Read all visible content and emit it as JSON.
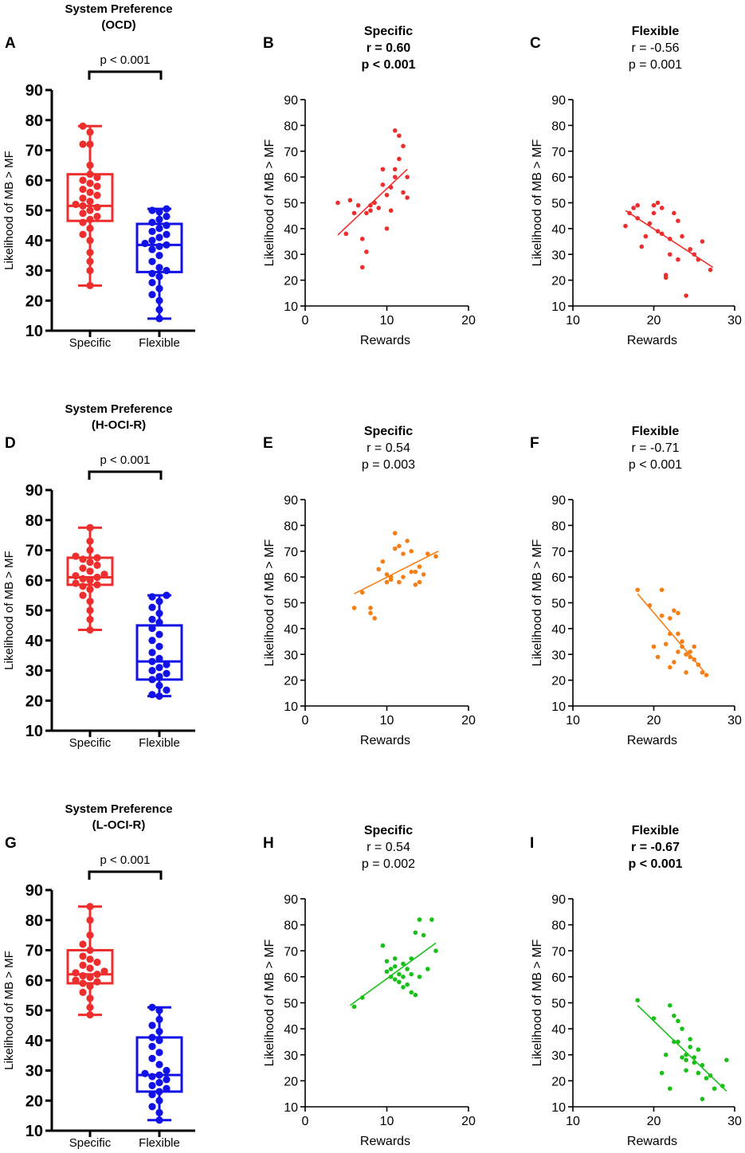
{
  "colors": {
    "red": "#ee2d2d",
    "blue": "#1212e8",
    "orange": "#f57f17",
    "green": "#18c018",
    "axis": "#000000"
  },
  "chart_data": [
    {
      "id": "A",
      "type": "box",
      "panel_letter": "A",
      "title": [
        "System Preference",
        "(OCD)"
      ],
      "title_bold": true,
      "ylabel": "Likelihood of MB > MF",
      "ylim": [
        10,
        90
      ],
      "yticks": [
        10,
        20,
        30,
        40,
        50,
        60,
        70,
        80,
        90
      ],
      "categories": [
        "Specific",
        "Flexible"
      ],
      "significance": "p < 0.001",
      "boxes": [
        {
          "name": "Specific",
          "color": "red",
          "min": 25,
          "q1": 46.5,
          "median": 51.5,
          "q3": 62,
          "max": 78,
          "points": [
            78,
            76,
            72,
            72,
            65,
            62,
            61,
            60,
            59,
            58,
            57,
            56,
            55,
            54,
            53,
            52,
            51.5,
            51,
            50,
            49,
            48,
            47,
            46,
            44,
            42,
            40,
            36,
            33,
            30,
            25
          ]
        },
        {
          "name": "Flexible",
          "color": "blue",
          "min": 14,
          "q1": 29.5,
          "median": 38.5,
          "q3": 45.5,
          "max": 50.5,
          "points": [
            50.5,
            50,
            49.5,
            48,
            47,
            46,
            45,
            44,
            43,
            42,
            41,
            40,
            39,
            38.5,
            38,
            37,
            35,
            33,
            31,
            30,
            29,
            28,
            26,
            24,
            22,
            20,
            17,
            14
          ]
        }
      ]
    },
    {
      "id": "B",
      "type": "scatter",
      "panel_letter": "B",
      "title": [
        "Specific",
        "r = 0.60",
        "p < 0.001"
      ],
      "title_bold": true,
      "color": "orange_red",
      "xlabel": "Rewards",
      "ylabel": "Likelihood of MB > MF",
      "xlim": [
        0,
        20
      ],
      "xticks": [
        0,
        10,
        20
      ],
      "ylim": [
        10,
        90
      ],
      "yticks": [
        10,
        20,
        30,
        40,
        50,
        60,
        70,
        80,
        90
      ],
      "x": [
        4,
        5,
        5.5,
        6,
        6.5,
        7,
        7,
        7.5,
        7.5,
        8,
        8,
        8.5,
        9,
        9.5,
        9.5,
        10,
        10,
        10.5,
        10.5,
        11,
        11,
        11,
        11.5,
        11.5,
        12,
        12,
        12.5,
        12.5
      ],
      "y": [
        50,
        38,
        51,
        46,
        49,
        36,
        25,
        46,
        31,
        47,
        49,
        50,
        48,
        57,
        63,
        53,
        40,
        56,
        47,
        60,
        63,
        78,
        76,
        67,
        72,
        54,
        60,
        52
      ],
      "fit": {
        "x1": 4,
        "y1": 37.5,
        "x2": 12.5,
        "y2": 63
      }
    },
    {
      "id": "C",
      "type": "scatter",
      "panel_letter": "C",
      "title": [
        "Flexible",
        "r = -0.56",
        "p = 0.001"
      ],
      "title_bold": false,
      "color": "orange_red",
      "xlabel": "Rewards",
      "ylabel": "Likelihood of MB > MF",
      "xlim": [
        10,
        30
      ],
      "xticks": [
        10,
        20,
        30
      ],
      "ylim": [
        10,
        90
      ],
      "yticks": [
        10,
        20,
        30,
        40,
        50,
        60,
        70,
        80,
        90
      ],
      "x": [
        16.5,
        17,
        17.5,
        18,
        18,
        18.5,
        19,
        19.5,
        20,
        20,
        20.5,
        20.5,
        21,
        21,
        21.5,
        21.5,
        22,
        22,
        22.5,
        23,
        23,
        23.5,
        24,
        24.5,
        25,
        25.5,
        26,
        27
      ],
      "y": [
        41,
        46,
        48,
        44,
        49,
        33,
        37,
        42,
        46,
        49,
        39,
        50,
        48,
        38,
        21,
        22,
        36,
        30,
        46,
        43,
        28,
        37,
        14,
        32,
        30,
        28,
        35,
        24
      ],
      "fit": {
        "x1": 16.5,
        "y1": 47,
        "x2": 27.3,
        "y2": 25
      }
    },
    {
      "id": "D",
      "type": "box",
      "panel_letter": "D",
      "title": [
        "System Preference",
        "(H-OCI-R)"
      ],
      "title_bold": true,
      "ylabel": "Likelihood of MB > MF",
      "ylim": [
        10,
        90
      ],
      "yticks": [
        10,
        20,
        30,
        40,
        50,
        60,
        70,
        80,
        90
      ],
      "categories": [
        "Specific",
        "Flexible"
      ],
      "significance": "p < 0.001",
      "boxes": [
        {
          "name": "Specific",
          "color": "red",
          "min": 43.5,
          "q1": 58.5,
          "median": 61,
          "q3": 67.5,
          "max": 77.5,
          "points": [
            77.5,
            73,
            70,
            68,
            67.5,
            67,
            66,
            65,
            64,
            63,
            62,
            61.5,
            61,
            60.5,
            60,
            59,
            58.5,
            58,
            57,
            55,
            53,
            50,
            47,
            43.5
          ]
        },
        {
          "name": "Flexible",
          "color": "blue",
          "min": 21.5,
          "q1": 27,
          "median": 33,
          "q3": 45,
          "max": 55,
          "points": [
            55,
            54.5,
            53,
            51,
            49,
            47,
            46,
            44,
            42,
            40,
            38,
            36,
            34,
            33,
            32,
            31,
            30,
            29,
            28,
            27,
            25,
            23.5,
            22,
            21.5
          ]
        }
      ]
    },
    {
      "id": "E",
      "type": "scatter",
      "panel_letter": "E",
      "title": [
        "Specific",
        "r = 0.54",
        "p = 0.003"
      ],
      "title_bold": false,
      "color": "orange",
      "xlabel": "Rewards",
      "ylabel": "Likelihood of MB > MF",
      "xlim": [
        0,
        20
      ],
      "xticks": [
        0,
        10,
        20
      ],
      "ylim": [
        10,
        90
      ],
      "yticks": [
        10,
        20,
        30,
        40,
        50,
        60,
        70,
        80,
        90
      ],
      "x": [
        6,
        7,
        8,
        8,
        8.5,
        9,
        9.5,
        10,
        10,
        10.5,
        10.5,
        11,
        11,
        11.5,
        11.5,
        12,
        12,
        12.5,
        13,
        13,
        13.5,
        13.5,
        14,
        14,
        14.5,
        15,
        16
      ],
      "y": [
        48,
        54,
        46,
        48,
        44,
        63,
        66,
        61,
        58,
        60,
        59,
        71,
        77,
        72,
        58,
        69,
        60,
        74,
        70,
        62,
        57,
        62,
        58,
        64,
        61,
        69,
        68
      ],
      "fit": {
        "x1": 6,
        "y1": 53.5,
        "x2": 16.3,
        "y2": 70
      }
    },
    {
      "id": "F",
      "type": "scatter",
      "panel_letter": "F",
      "title": [
        "Flexible",
        "r = -0.71",
        "p < 0.001"
      ],
      "title_bold": false,
      "color": "orange",
      "xlabel": "Rewards",
      "ylabel": "Likelihood of MB > MF",
      "xlim": [
        10,
        30
      ],
      "xticks": [
        10,
        20,
        30
      ],
      "ylim": [
        10,
        90
      ],
      "yticks": [
        10,
        20,
        30,
        40,
        50,
        60,
        70,
        80,
        90
      ],
      "x": [
        18,
        19.5,
        20,
        20.5,
        21,
        21,
        21.5,
        22,
        22,
        22,
        22.5,
        22.5,
        23,
        23,
        23,
        23.5,
        23.5,
        24,
        24,
        24.5,
        24.5,
        25,
        25,
        25.5,
        26,
        26.5
      ],
      "y": [
        55,
        49,
        33,
        29,
        55,
        45,
        34,
        25,
        38,
        44,
        27,
        47,
        31,
        38,
        46,
        33,
        35,
        23,
        30,
        29,
        31,
        33,
        28,
        26,
        23,
        22
      ],
      "fit": {
        "x1": 18,
        "y1": 53.5,
        "x2": 26.3,
        "y2": 23
      }
    },
    {
      "id": "G",
      "type": "box",
      "panel_letter": "G",
      "title": [
        "System Preference",
        "(L-OCI-R)"
      ],
      "title_bold": true,
      "ylabel": "Likelihood of MB > MF",
      "ylim": [
        10,
        90
      ],
      "yticks": [
        10,
        20,
        30,
        40,
        50,
        60,
        70,
        80,
        90
      ],
      "categories": [
        "Specific",
        "Flexible"
      ],
      "significance": "p < 0.001",
      "boxes": [
        {
          "name": "Specific",
          "color": "red",
          "min": 48.5,
          "q1": 59,
          "median": 62,
          "q3": 70,
          "max": 84.5,
          "points": [
            84.5,
            80,
            75,
            72,
            70,
            68,
            67,
            66,
            65,
            64,
            63,
            62.5,
            62,
            61.5,
            61,
            60,
            59.5,
            59,
            58,
            56,
            54,
            51,
            48.5
          ]
        },
        {
          "name": "Flexible",
          "color": "blue",
          "min": 13.5,
          "q1": 23,
          "median": 28.5,
          "q3": 41,
          "max": 51,
          "points": [
            51,
            50,
            47,
            45,
            43,
            41,
            40,
            38,
            36,
            34,
            32,
            30,
            29,
            28.5,
            28,
            27,
            26,
            25,
            24,
            23,
            22,
            20,
            18,
            16,
            13.5
          ]
        }
      ]
    },
    {
      "id": "H",
      "type": "scatter",
      "panel_letter": "H",
      "title": [
        "Specific",
        "r = 0.54",
        "p = 0.002"
      ],
      "title_bold": false,
      "color": "green",
      "xlabel": "Rewards",
      "ylabel": "Likelihood of MB > MF",
      "xlim": [
        0,
        20
      ],
      "xticks": [
        0,
        10,
        20
      ],
      "ylim": [
        10,
        90
      ],
      "yticks": [
        10,
        20,
        30,
        40,
        50,
        60,
        70,
        80,
        90
      ],
      "x": [
        6,
        7,
        9.5,
        10,
        10,
        10.5,
        10.5,
        11,
        11,
        11,
        11.5,
        11.5,
        12,
        12,
        12,
        12.5,
        12.5,
        13,
        13,
        13,
        13.5,
        13.5,
        14,
        14,
        14.5,
        15,
        15.5,
        16
      ],
      "y": [
        48.5,
        52,
        72,
        62,
        66,
        60,
        63,
        64,
        67,
        59,
        58,
        61,
        65,
        60,
        56,
        57,
        63,
        54,
        67,
        61,
        77,
        53,
        82,
        60,
        76,
        63,
        82,
        70
      ],
      "fit": {
        "x1": 5.5,
        "y1": 49,
        "x2": 16,
        "y2": 73
      }
    },
    {
      "id": "I",
      "type": "scatter",
      "panel_letter": "I",
      "title": [
        "Flexible",
        "r = -0.67",
        "p < 0.001"
      ],
      "title_bold": true,
      "color": "green",
      "xlabel": "Rewards",
      "ylabel": "Likelihood of MB > MF",
      "xlim": [
        10,
        30
      ],
      "xticks": [
        10,
        20,
        30
      ],
      "ylim": [
        10,
        90
      ],
      "yticks": [
        10,
        20,
        30,
        40,
        50,
        60,
        70,
        80,
        90
      ],
      "x": [
        18,
        20,
        21,
        21.5,
        22,
        22,
        22.5,
        22.5,
        23,
        23,
        23.5,
        23.5,
        24,
        24,
        24,
        24.5,
        24.5,
        25,
        25,
        25.5,
        25.5,
        26,
        26,
        26.5,
        27,
        27.5,
        28.5,
        29
      ],
      "y": [
        51,
        44,
        23,
        30,
        49,
        17,
        45,
        35,
        43,
        35,
        40,
        29,
        28,
        24,
        30,
        36,
        33,
        29,
        27,
        23,
        32,
        26,
        13,
        21,
        22,
        17,
        18,
        28
      ],
      "fit": {
        "x1": 18,
        "y1": 49,
        "x2": 29,
        "y2": 16
      }
    }
  ]
}
